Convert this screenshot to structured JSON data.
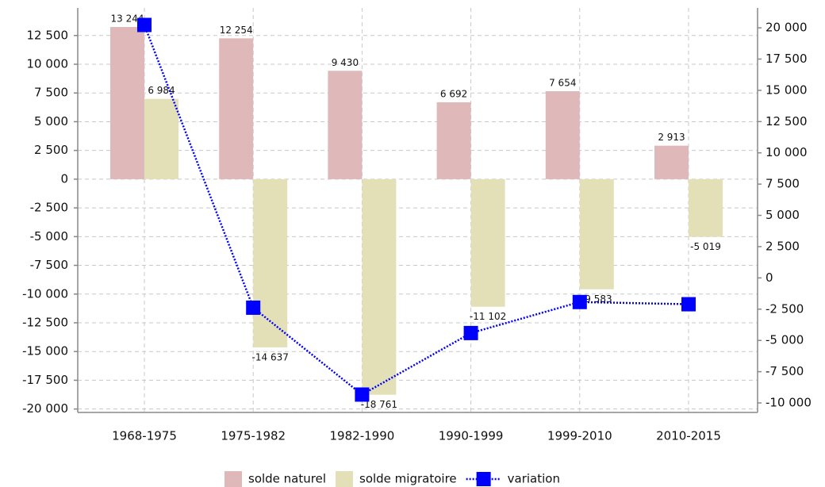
{
  "chart_data": {
    "type": "bar",
    "categories": [
      "1968-1975",
      "1975-1982",
      "1982-1990",
      "1990-1999",
      "1999-2010",
      "2010-2015"
    ],
    "series": [
      {
        "name": "solde naturel",
        "color": "#dfb8ba",
        "values": [
          13244,
          12254,
          9430,
          6692,
          7654,
          2913
        ],
        "value_labels": [
          "13 244",
          "12 254",
          "9 430",
          "6 692",
          "7 654",
          "2 913"
        ]
      },
      {
        "name": "solde migratoire",
        "color": "#e3e0b8",
        "values": [
          6984,
          -14637,
          -18761,
          -11102,
          -9583,
          -5019
        ],
        "value_labels": [
          "6 984",
          "-14 637",
          "-18 761",
          "-11 102",
          "-9 583",
          "-5 019"
        ]
      },
      {
        "name": "variation",
        "color": "#0000ff",
        "type": "line",
        "axis": "y2",
        "values": [
          20228,
          -2383,
          -9331,
          -4410,
          -1929,
          -2106
        ]
      }
    ],
    "ylim": [
      -20300,
      14900
    ],
    "yticks": [
      {
        "value": -20000,
        "label": "-20 000"
      },
      {
        "value": -17500,
        "label": "-17 500"
      },
      {
        "value": -15000,
        "label": "-15 000"
      },
      {
        "value": -12500,
        "label": "-12 500"
      },
      {
        "value": -10000,
        "label": "-10 000"
      },
      {
        "value": -7500,
        "label": "-7 500"
      },
      {
        "value": -5000,
        "label": "-5 000"
      },
      {
        "value": -2500,
        "label": "-2 500"
      },
      0,
      {
        "value": 2500,
        "label": "2 500"
      },
      {
        "value": 5000,
        "label": "5 000"
      },
      {
        "value": 7500,
        "label": "7 500"
      },
      {
        "value": 10000,
        "label": "10 000"
      },
      {
        "value": 12500,
        "label": "12 500"
      }
    ],
    "y2lim": [
      -10760,
      21590
    ],
    "y2ticks": [
      {
        "value": -10000,
        "label": "-10 000"
      },
      {
        "value": -7500,
        "label": "-7 500"
      },
      {
        "value": -5000,
        "label": "-5 000"
      },
      {
        "value": -2500,
        "label": "-2 500"
      },
      0,
      {
        "value": 2500,
        "label": "2 500"
      },
      {
        "value": 5000,
        "label": "5 000"
      },
      {
        "value": 7500,
        "label": "7 500"
      },
      {
        "value": 10000,
        "label": "10 000"
      },
      {
        "value": 12500,
        "label": "12 500"
      },
      {
        "value": 15000,
        "label": "15 000"
      },
      {
        "value": 17500,
        "label": "17 500"
      },
      {
        "value": 20000,
        "label": "20 000"
      }
    ],
    "grid": true,
    "legend": "bottom"
  }
}
